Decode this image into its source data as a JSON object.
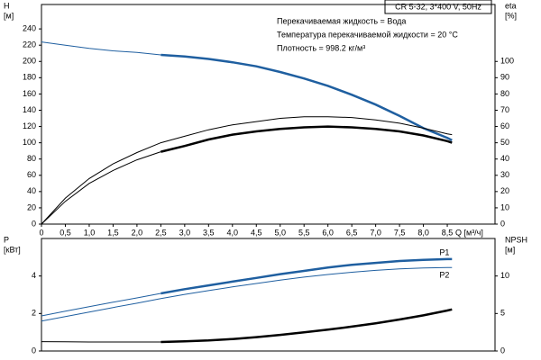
{
  "chart_data": [
    {
      "type": "line",
      "ylabel": [
        "H",
        "[м]"
      ],
      "y2label": [
        "eta",
        "[%]"
      ],
      "xlabel": "Q [м³/ч]",
      "box_label": "CR 5-32, 3*400 V, 50Hz",
      "annotations": [
        "Перекачиваемая жидкость = Вода",
        "Температура перекачиваемой жидкости = 20 °C",
        "Плотность = 998.2 кг/м³"
      ],
      "xlim": [
        0,
        9.5
      ],
      "xticks": [
        0,
        {
          "value": 0.5,
          "label": "0,5"
        },
        {
          "value": 1,
          "label": "1,0"
        },
        {
          "value": 1.5,
          "label": "1,5"
        },
        {
          "value": 2,
          "label": "2,0"
        },
        {
          "value": 2.5,
          "label": "2,5"
        },
        {
          "value": 3,
          "label": "3,0"
        },
        {
          "value": 3.5,
          "label": "3,5"
        },
        {
          "value": 4,
          "label": "4,0"
        },
        {
          "value": 4.5,
          "label": "4,5"
        },
        {
          "value": 5,
          "label": "5,0"
        },
        {
          "value": 5.5,
          "label": "5,5"
        },
        {
          "value": 6,
          "label": "6,0"
        },
        {
          "value": 6.5,
          "label": "6,5"
        },
        {
          "value": 7,
          "label": "7,0"
        },
        {
          "value": 7.5,
          "label": "7,5"
        },
        {
          "value": 8,
          "label": "8,0"
        },
        {
          "value": 8.5,
          "label": "8,5"
        }
      ],
      "ylim": [
        0,
        270
      ],
      "yticks": [
        0,
        20,
        40,
        60,
        80,
        100,
        120,
        140,
        160,
        180,
        200,
        220,
        240
      ],
      "y2lim": [
        0,
        135
      ],
      "y2ticks": [
        0,
        10,
        20,
        30,
        40,
        50,
        60,
        70,
        80,
        90,
        100
      ],
      "series": [
        {
          "color": "#1f5fa0",
          "width": 1,
          "x": [
            0,
            0.5,
            1,
            1.5,
            2,
            2.5
          ],
          "values": [
            224,
            220,
            216,
            213,
            211,
            208
          ]
        },
        {
          "color": "#1f5fa0",
          "width": 2.5,
          "x": [
            2.5,
            3,
            3.5,
            4,
            4.5,
            5,
            5.5,
            6,
            6.5,
            7,
            7.5,
            8,
            8.5,
            8.6
          ],
          "values": [
            208,
            206,
            203,
            199,
            194,
            187,
            179,
            170,
            159,
            147,
            133,
            118,
            106,
            103
          ]
        },
        {
          "color": "#000000",
          "width": 1,
          "axis": "y2",
          "x": [
            0,
            0.5,
            1,
            1.5,
            2,
            2.5,
            3,
            3.5,
            4,
            4.5,
            5,
            5.5,
            6,
            6.5,
            7,
            7.5,
            8,
            8.5,
            8.6
          ],
          "values": [
            0,
            16,
            28,
            37,
            44,
            50,
            54,
            58,
            61,
            63,
            65,
            66,
            66,
            65.5,
            64,
            62,
            59,
            55.5,
            55
          ]
        },
        {
          "color": "#000000",
          "width": 1,
          "axis": "y2",
          "x": [
            0,
            0.5,
            1,
            1.5,
            2,
            2.5
          ],
          "values": [
            0,
            14,
            25,
            33,
            39.5,
            44.5
          ]
        },
        {
          "color": "#000000",
          "width": 2.5,
          "axis": "y2",
          "x": [
            2.5,
            3,
            3.5,
            4,
            4.5,
            5,
            5.5,
            6,
            6.5,
            7,
            7.5,
            8,
            8.5,
            8.6
          ],
          "values": [
            44.5,
            48,
            52,
            55,
            57,
            58.5,
            59.5,
            60,
            59.5,
            58.5,
            57,
            54.5,
            51,
            50
          ]
        }
      ]
    },
    {
      "type": "line",
      "ylabel": [
        "P",
        "[кВт]"
      ],
      "y2label": [
        "NPSH",
        "[м]"
      ],
      "xlim": [
        0,
        9.5
      ],
      "ylim": [
        0,
        6
      ],
      "yticks": [
        0,
        2,
        4
      ],
      "y2lim": [
        0,
        15
      ],
      "y2ticks": [
        0,
        5,
        10
      ],
      "series": [
        {
          "color": "#1f5fa0",
          "width": 1,
          "x": [
            0,
            0.5,
            1,
            1.5,
            2,
            2.5
          ],
          "values": [
            1.87,
            2.12,
            2.36,
            2.6,
            2.83,
            3.07
          ]
        },
        {
          "name": "P1",
          "color": "#1f5fa0",
          "width": 2.5,
          "x": [
            2.5,
            3,
            3.5,
            4,
            4.5,
            5,
            5.5,
            6,
            6.5,
            7,
            7.5,
            8,
            8.5,
            8.6
          ],
          "values": [
            3.07,
            3.3,
            3.5,
            3.7,
            3.9,
            4.1,
            4.27,
            4.45,
            4.6,
            4.7,
            4.8,
            4.86,
            4.9,
            4.9
          ]
        },
        {
          "name": "P2",
          "color": "#1f5fa0",
          "width": 1,
          "x": [
            0,
            0.5,
            1,
            1.5,
            2,
            2.5,
            3,
            3.5,
            4,
            4.5,
            5,
            5.5,
            6,
            6.5,
            7,
            7.5,
            8,
            8.5,
            8.6
          ],
          "values": [
            1.6,
            1.84,
            2.08,
            2.32,
            2.55,
            2.8,
            3.02,
            3.22,
            3.42,
            3.6,
            3.78,
            3.94,
            4.08,
            4.2,
            4.3,
            4.38,
            4.43,
            4.45,
            4.45
          ]
        },
        {
          "color": "#000000",
          "width": 1,
          "axis": "y2",
          "x": [
            0,
            0.5,
            1,
            1.5,
            2,
            2.5
          ],
          "values": [
            1.25,
            1.22,
            1.2,
            1.2,
            1.2,
            1.2
          ]
        },
        {
          "color": "#000000",
          "width": 2.5,
          "axis": "y2",
          "x": [
            2.5,
            3,
            3.5,
            4,
            4.5,
            5,
            5.5,
            6,
            6.5,
            7,
            7.5,
            8,
            8.5,
            8.6
          ],
          "values": [
            1.2,
            1.28,
            1.4,
            1.6,
            1.85,
            2.15,
            2.5,
            2.85,
            3.25,
            3.7,
            4.2,
            4.75,
            5.4,
            5.55
          ]
        }
      ]
    }
  ]
}
